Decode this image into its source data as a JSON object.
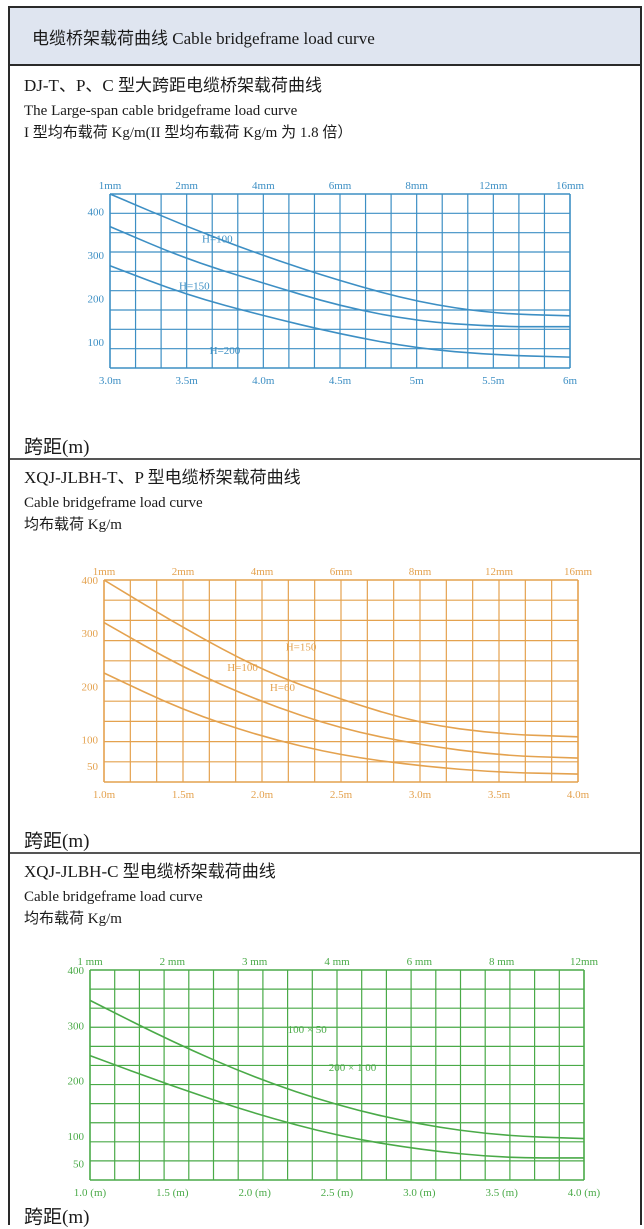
{
  "header": {
    "title": "电缆桥架载荷曲线   Cable bridgeframe load curve"
  },
  "sections": [
    {
      "title": "DJ-T、P、C 型大跨距电缆桥架载荷曲线",
      "subtitle": "The Large-span cable bridgeframe load curve",
      "note": "I 型均布载荷 Kg/m(II 型均布载荷 Kg/m 为 1.8 倍）",
      "span_label": "跨距(m)"
    },
    {
      "title": "XQJ-JLBH-T、P 型电缆桥架载荷曲线",
      "subtitle": "Cable bridgeframe load curve",
      "note": "均布载荷 Kg/m",
      "span_label": "跨距(m)"
    },
    {
      "title": "XQJ-JLBH-C 型电缆桥架载荷曲线",
      "subtitle": "Cable bridgeframe load curve",
      "note": "均布载荷 Kg/m",
      "span_label": "跨距(m)"
    }
  ],
  "chart_data": [
    {
      "type": "line",
      "color": "#3d8fc4",
      "x_ticks": [
        "3.0m",
        "3.5m",
        "4.0m",
        "4.5m",
        "5m",
        "5.5m",
        "6m"
      ],
      "x_range": [
        3.0,
        6.0
      ],
      "y_ticks": [
        "400",
        "300",
        "200",
        "100"
      ],
      "y_range": [
        40,
        440
      ],
      "top_ticks": [
        "1mm",
        "2mm",
        "4mm",
        "6mm",
        "8mm",
        "12mm",
        "16mm"
      ],
      "series": [
        {
          "name": "H=200",
          "x": [
            3.0,
            3.5,
            4.0,
            4.5,
            5.0,
            5.5,
            6.0
          ],
          "y": [
            440,
            365,
            298,
            240,
            192,
            165,
            160
          ]
        },
        {
          "name": "H=150",
          "x": [
            3.0,
            3.5,
            4.0,
            4.5,
            5.0,
            5.5,
            6.0
          ],
          "y": [
            365,
            290,
            235,
            182,
            148,
            135,
            135
          ]
        },
        {
          "name": "H=100",
          "x": [
            3.0,
            3.5,
            4.0,
            4.5,
            5.0,
            5.5,
            6.0
          ],
          "y": [
            275,
            208,
            160,
            118,
            85,
            70,
            65
          ]
        }
      ]
    },
    {
      "type": "line",
      "color": "#e4a24f",
      "x_ticks": [
        "1.0m",
        "1.5m",
        "2.0m",
        "2.5m",
        "3.0m",
        "3.5m",
        "4.0m"
      ],
      "x_range": [
        1.0,
        4.0
      ],
      "y_ticks": [
        "400",
        "300",
        "200",
        "100",
        "50"
      ],
      "y_range": [
        20,
        400
      ],
      "top_ticks": [
        "1mm",
        "2mm",
        "4mm",
        "6mm",
        "8mm",
        "12mm",
        "16mm"
      ],
      "series": [
        {
          "name": "H=150",
          "x": [
            1.0,
            1.5,
            2.0,
            2.5,
            3.0,
            3.5,
            4.0
          ],
          "y": [
            400,
            310,
            230,
            175,
            130,
            110,
            105
          ]
        },
        {
          "name": "H=100",
          "x": [
            1.0,
            1.5,
            2.0,
            2.5,
            3.0,
            3.5,
            4.0
          ],
          "y": [
            320,
            235,
            170,
            120,
            90,
            70,
            65
          ]
        },
        {
          "name": "H=60",
          "x": [
            1.0,
            1.5,
            2.0,
            2.5,
            3.0,
            3.5,
            4.0
          ],
          "y": [
            225,
            155,
            105,
            70,
            50,
            38,
            35
          ]
        }
      ]
    },
    {
      "type": "line",
      "color": "#4aaa48",
      "x_ticks": [
        "1.0 (m)",
        "1.5 (m)",
        "2.0 (m)",
        "2.5 (m)",
        "3.0 (m)",
        "3.5 (m)",
        "4.0 (m)"
      ],
      "x_range": [
        1.0,
        4.0
      ],
      "y_ticks": [
        "400",
        "300",
        "200",
        "100",
        "50"
      ],
      "y_range": [
        20,
        400
      ],
      "top_ticks": [
        "1 mm",
        "2 mm",
        "3 mm",
        "4 mm",
        "6 mm",
        "8 mm",
        "12mm"
      ],
      "series": [
        {
          "name": "200 × 1 00",
          "x": [
            1.0,
            1.5,
            2.0,
            2.5,
            3.0,
            3.5,
            4.0
          ],
          "y": [
            345,
            270,
            205,
            155,
            120,
            100,
            95
          ]
        },
        {
          "name": "100 × 50",
          "x": [
            1.0,
            1.5,
            2.0,
            2.5,
            3.0,
            3.5,
            4.0
          ],
          "y": [
            245,
            190,
            140,
            100,
            75,
            60,
            60
          ]
        }
      ]
    }
  ]
}
